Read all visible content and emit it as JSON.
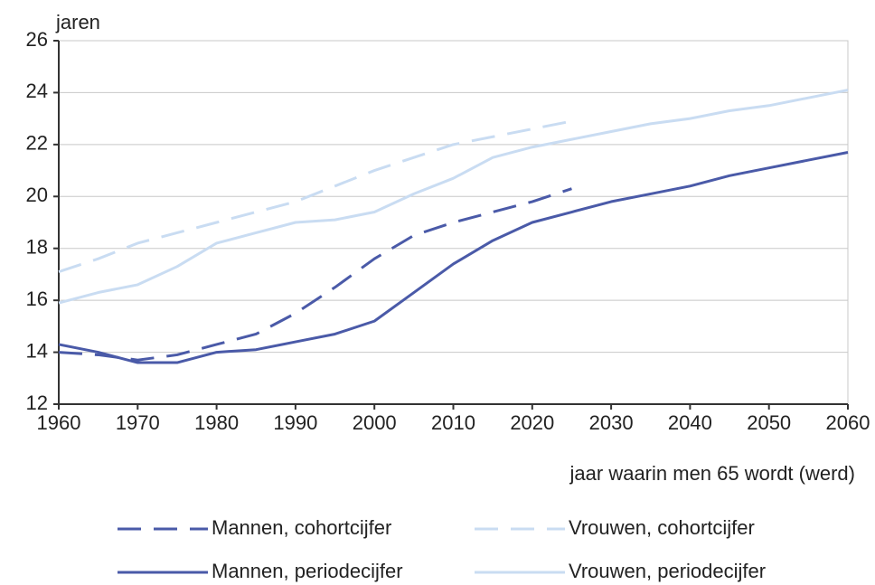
{
  "chart_data": {
    "type": "line",
    "y_label": "jaren",
    "x_label": "jaar waarin men 65 wordt (werd)",
    "x": [
      1960,
      1965,
      1970,
      1975,
      1980,
      1985,
      1990,
      1995,
      2000,
      2005,
      2010,
      2015,
      2020,
      2025,
      2030,
      2035,
      2040,
      2045,
      2050,
      2055,
      2060
    ],
    "series": [
      {
        "name": "Mannen, cohortcijfer",
        "color": "#4a5aa8",
        "dashed": true,
        "values": [
          14.0,
          13.9,
          13.7,
          13.9,
          14.3,
          14.7,
          15.5,
          16.5,
          17.6,
          18.5,
          19.0,
          19.4,
          19.8,
          20.3,
          null,
          null,
          null,
          null,
          null,
          null,
          null
        ]
      },
      {
        "name": "Vrouwen, cohortcijfer",
        "color": "#c9dcf2",
        "dashed": true,
        "values": [
          17.1,
          17.6,
          18.2,
          18.6,
          19.0,
          19.4,
          19.8,
          20.4,
          21.0,
          21.5,
          22.0,
          22.3,
          22.6,
          22.9,
          null,
          null,
          null,
          null,
          null,
          null,
          null
        ]
      },
      {
        "name": "Mannen, periodecijfer",
        "color": "#4a5aa8",
        "dashed": false,
        "values": [
          14.3,
          14.0,
          13.6,
          13.6,
          14.0,
          14.1,
          14.4,
          14.7,
          15.2,
          16.3,
          17.4,
          18.3,
          19.0,
          19.4,
          19.8,
          20.1,
          20.4,
          20.8,
          21.1,
          21.4,
          21.7
        ]
      },
      {
        "name": "Vrouwen, periodecijfer",
        "color": "#c9dcf2",
        "dashed": false,
        "values": [
          15.9,
          16.3,
          16.6,
          17.3,
          18.2,
          18.6,
          19.0,
          19.1,
          19.4,
          20.1,
          20.7,
          21.5,
          21.9,
          22.2,
          22.5,
          22.8,
          23.0,
          23.3,
          23.5,
          23.8,
          24.1
        ]
      }
    ],
    "xlim": [
      1960,
      2060
    ],
    "xticks": [
      1960,
      1970,
      1980,
      1990,
      2000,
      2010,
      2020,
      2030,
      2040,
      2050,
      2060
    ],
    "ylim": [
      12,
      26
    ],
    "yticks": [
      12,
      14,
      16,
      18,
      20,
      22,
      24,
      26
    ],
    "grid": true
  }
}
